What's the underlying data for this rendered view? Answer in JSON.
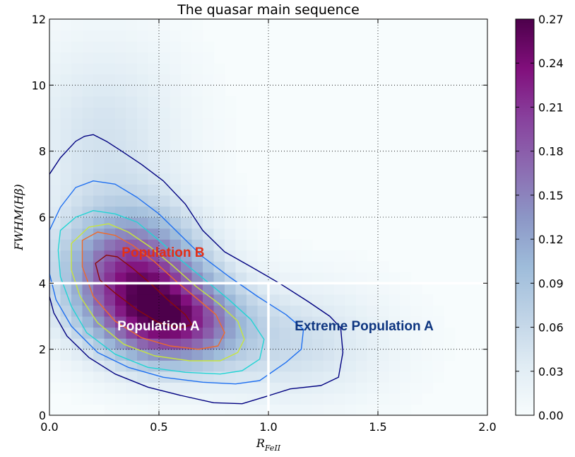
{
  "chart_data": {
    "type": "heatmap",
    "title": "The quasar main sequence",
    "xlabel": "R",
    "xlabel_sub": "FeII",
    "ylabel": "FWHM(Hβ)",
    "xlim": [
      0.0,
      2.0
    ],
    "ylim": [
      0,
      12
    ],
    "xticks": [
      "0.0",
      "0.5",
      "1.0",
      "1.5",
      "2.0"
    ],
    "yticks": [
      "0",
      "2",
      "4",
      "6",
      "8",
      "10",
      "12"
    ],
    "grid": true,
    "colorbar": {
      "min": 0.0,
      "max": 0.27,
      "ticks": [
        "0.00",
        "0.03",
        "0.06",
        "0.09",
        "0.12",
        "0.15",
        "0.18",
        "0.21",
        "0.24",
        "0.27"
      ],
      "colors": [
        "#f7fcfd",
        "#e0ecf4",
        "#bfd3e6",
        "#9ebcda",
        "#8c96c6",
        "#8c6bb1",
        "#88419d",
        "#810f7c",
        "#4d004b"
      ]
    },
    "density_peak": {
      "x": 0.4,
      "y": 3.8,
      "value": 0.27
    },
    "divider_lines": [
      {
        "from": [
          0.0,
          4.0
        ],
        "to": [
          2.0,
          4.0
        ]
      },
      {
        "from": [
          1.0,
          0.0
        ],
        "to": [
          1.0,
          4.0
        ]
      }
    ],
    "contours": [
      {
        "color": "#000080",
        "points": [
          [
            0.0,
            7.3
          ],
          [
            0.05,
            7.8
          ],
          [
            0.12,
            8.3
          ],
          [
            0.16,
            8.45
          ],
          [
            0.2,
            8.5
          ],
          [
            0.26,
            8.3
          ],
          [
            0.33,
            8.0
          ],
          [
            0.42,
            7.6
          ],
          [
            0.52,
            7.1
          ],
          [
            0.62,
            6.4
          ],
          [
            0.7,
            5.6
          ],
          [
            0.8,
            4.95
          ],
          [
            0.92,
            4.5
          ],
          [
            1.05,
            4.0
          ],
          [
            1.18,
            3.45
          ],
          [
            1.28,
            3.0
          ],
          [
            1.33,
            2.65
          ],
          [
            1.34,
            1.9
          ],
          [
            1.32,
            1.15
          ],
          [
            1.24,
            0.9
          ],
          [
            1.1,
            0.8
          ],
          [
            0.98,
            0.55
          ],
          [
            0.88,
            0.35
          ],
          [
            0.75,
            0.38
          ],
          [
            0.6,
            0.6
          ],
          [
            0.45,
            0.85
          ],
          [
            0.3,
            1.25
          ],
          [
            0.18,
            1.75
          ],
          [
            0.08,
            2.4
          ],
          [
            0.02,
            3.1
          ],
          [
            0.0,
            3.6
          ]
        ]
      },
      {
        "color": "#1e6ff0",
        "points": [
          [
            0.0,
            5.6
          ],
          [
            0.05,
            6.3
          ],
          [
            0.12,
            6.9
          ],
          [
            0.2,
            7.1
          ],
          [
            0.3,
            7.0
          ],
          [
            0.4,
            6.6
          ],
          [
            0.5,
            6.1
          ],
          [
            0.6,
            5.45
          ],
          [
            0.7,
            4.8
          ],
          [
            0.82,
            4.2
          ],
          [
            0.95,
            3.6
          ],
          [
            1.08,
            3.05
          ],
          [
            1.16,
            2.6
          ],
          [
            1.15,
            2.0
          ],
          [
            1.08,
            1.6
          ],
          [
            0.96,
            1.05
          ],
          [
            0.85,
            0.95
          ],
          [
            0.7,
            1.0
          ],
          [
            0.52,
            1.15
          ],
          [
            0.36,
            1.45
          ],
          [
            0.22,
            1.9
          ],
          [
            0.1,
            2.7
          ],
          [
            0.03,
            3.5
          ],
          [
            0.0,
            4.3
          ]
        ]
      },
      {
        "color": "#22d4d4",
        "points": [
          [
            0.05,
            5.6
          ],
          [
            0.12,
            6.0
          ],
          [
            0.2,
            6.2
          ],
          [
            0.3,
            6.1
          ],
          [
            0.4,
            5.85
          ],
          [
            0.5,
            5.3
          ],
          [
            0.6,
            4.7
          ],
          [
            0.72,
            4.05
          ],
          [
            0.82,
            3.5
          ],
          [
            0.92,
            2.9
          ],
          [
            0.98,
            2.3
          ],
          [
            0.96,
            1.7
          ],
          [
            0.88,
            1.35
          ],
          [
            0.78,
            1.25
          ],
          [
            0.62,
            1.3
          ],
          [
            0.45,
            1.45
          ],
          [
            0.3,
            1.85
          ],
          [
            0.17,
            2.5
          ],
          [
            0.1,
            3.3
          ],
          [
            0.05,
            4.2
          ],
          [
            0.04,
            5.0
          ]
        ]
      },
      {
        "color": "#c8e63c",
        "points": [
          [
            0.1,
            5.2
          ],
          [
            0.18,
            5.7
          ],
          [
            0.27,
            5.8
          ],
          [
            0.36,
            5.55
          ],
          [
            0.46,
            5.1
          ],
          [
            0.56,
            4.55
          ],
          [
            0.67,
            3.9
          ],
          [
            0.77,
            3.4
          ],
          [
            0.86,
            2.85
          ],
          [
            0.89,
            2.3
          ],
          [
            0.86,
            1.9
          ],
          [
            0.78,
            1.65
          ],
          [
            0.64,
            1.65
          ],
          [
            0.48,
            1.8
          ],
          [
            0.34,
            2.15
          ],
          [
            0.22,
            2.8
          ],
          [
            0.14,
            3.6
          ],
          [
            0.1,
            4.4
          ]
        ]
      },
      {
        "color": "#ef6a2a",
        "points": [
          [
            0.15,
            5.3
          ],
          [
            0.22,
            5.55
          ],
          [
            0.3,
            5.45
          ],
          [
            0.38,
            5.15
          ],
          [
            0.48,
            4.65
          ],
          [
            0.58,
            4.05
          ],
          [
            0.68,
            3.5
          ],
          [
            0.76,
            3.05
          ],
          [
            0.8,
            2.5
          ],
          [
            0.77,
            2.1
          ],
          [
            0.68,
            2.0
          ],
          [
            0.55,
            2.1
          ],
          [
            0.42,
            2.35
          ],
          [
            0.3,
            2.85
          ],
          [
            0.2,
            3.6
          ],
          [
            0.15,
            4.5
          ]
        ]
      },
      {
        "color": "#8b0a0a",
        "points": [
          [
            0.21,
            4.6
          ],
          [
            0.26,
            4.85
          ],
          [
            0.31,
            4.8
          ],
          [
            0.38,
            4.45
          ],
          [
            0.46,
            4.0
          ],
          [
            0.54,
            3.5
          ],
          [
            0.62,
            3.05
          ],
          [
            0.65,
            2.75
          ],
          [
            0.6,
            2.65
          ],
          [
            0.5,
            2.8
          ],
          [
            0.4,
            3.2
          ],
          [
            0.3,
            3.7
          ],
          [
            0.23,
            4.1
          ]
        ]
      }
    ],
    "annotations": [
      {
        "text": "Population B",
        "x": 0.33,
        "y": 4.95,
        "color": "#e23018"
      },
      {
        "text": "Population A",
        "x": 0.31,
        "y": 2.72,
        "color": "#ffffff"
      },
      {
        "text": "Extreme Population A",
        "x": 1.12,
        "y": 2.72,
        "color": "#0d3580"
      }
    ]
  }
}
